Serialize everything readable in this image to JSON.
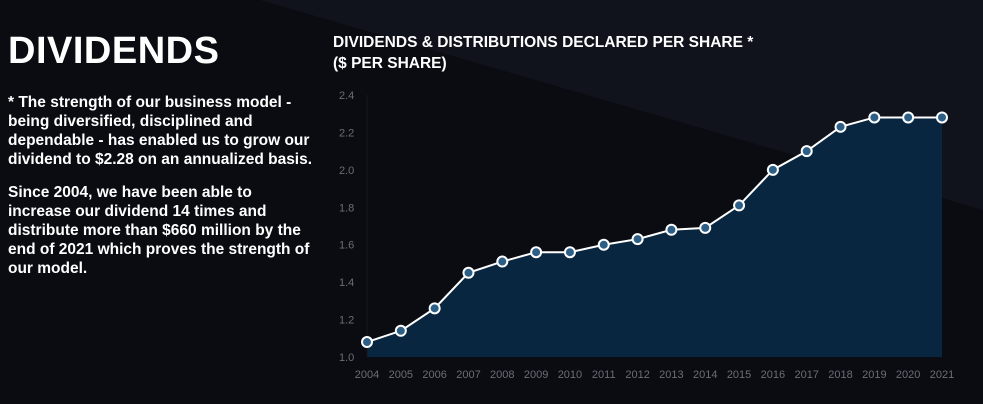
{
  "left": {
    "heading": "DIVIDENDS",
    "paragraph1": "* The strength of our business model - being diversified, disciplined and dependable - has enabled us to grow our dividend to $2.28 on an annualized basis.",
    "paragraph2": "Since 2004, we have been able to increase our dividend 14 times and distribute more than $660 million by the end of 2021 which proves the strength of our model."
  },
  "chart_data": {
    "type": "area",
    "title_line1": "DIVIDENDS & DISTRIBUTIONS DECLARED PER SHARE *",
    "title_line2": "($ PER SHARE)",
    "categories": [
      "2004",
      "2005",
      "2006",
      "2007",
      "2008",
      "2009",
      "2010",
      "2011",
      "2012",
      "2013",
      "2014",
      "2015",
      "2016",
      "2017",
      "2018",
      "2019",
      "2020",
      "2021"
    ],
    "values": [
      1.08,
      1.14,
      1.26,
      1.45,
      1.51,
      1.56,
      1.56,
      1.6,
      1.63,
      1.68,
      1.69,
      1.81,
      2.0,
      2.1,
      2.23,
      2.28,
      2.28,
      2.28
    ],
    "ylim": [
      1.0,
      2.4
    ],
    "yticks": [
      "1.0",
      "1.2",
      "1.4",
      "1.6",
      "1.8",
      "2.0",
      "2.2",
      "2.4"
    ],
    "grid": false,
    "colors": {
      "fill": "#092640",
      "line": "#ffffff",
      "marker_fill": "#2d5f86"
    }
  }
}
